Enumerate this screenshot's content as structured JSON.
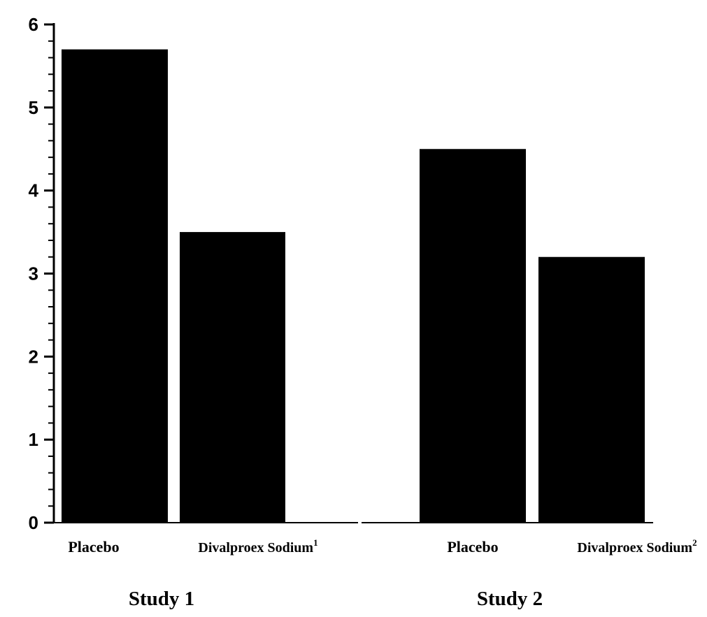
{
  "chart_data": {
    "type": "bar",
    "title": "",
    "xlabel": "",
    "ylabel": "",
    "ylim": [
      0,
      6
    ],
    "yticks": [
      "0",
      "1",
      "2",
      "3",
      "4",
      "5",
      "6"
    ],
    "grid": false,
    "legend": "none",
    "bar_color": "#000000",
    "groups": [
      {
        "label": "Study 1",
        "bars": [
          {
            "label": "Placebo",
            "superscript": "",
            "value": 5.7
          },
          {
            "label": "Divalproex Sodium",
            "superscript": "1",
            "value": 3.5
          }
        ]
      },
      {
        "label": "Study 2",
        "bars": [
          {
            "label": "Placebo",
            "superscript": "",
            "value": 4.5
          },
          {
            "label": "Divalproex Sodium",
            "superscript": "2",
            "value": 3.2
          }
        ]
      }
    ]
  }
}
